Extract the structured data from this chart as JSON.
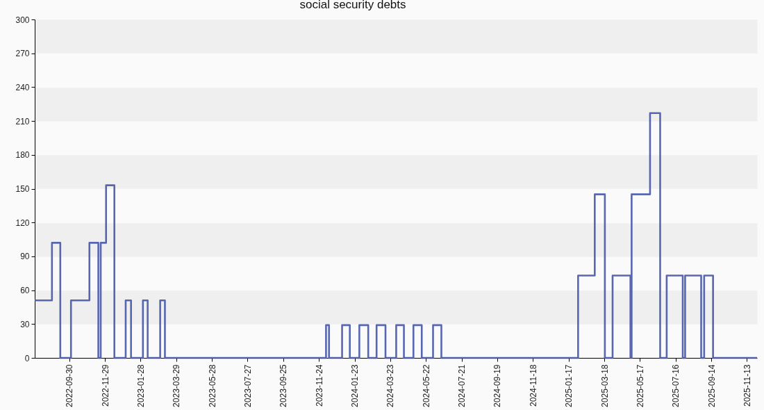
{
  "chart_data": {
    "type": "step",
    "title": "social security debts",
    "x": [
      "2022-08-03",
      "2022-09-01",
      "2022-09-15",
      "2022-10-03",
      "2022-11-03",
      "2022-11-18",
      "2022-11-22",
      "2022-12-01",
      "2022-12-15",
      "2023-01-03",
      "2023-01-12",
      "2023-02-01",
      "2023-02-09",
      "2023-03-02",
      "2023-03-10",
      "2023-12-06",
      "2023-12-11",
      "2024-01-02",
      "2024-01-15",
      "2024-01-31",
      "2024-02-15",
      "2024-02-29",
      "2024-03-15",
      "2024-04-02",
      "2024-04-15",
      "2024-05-01",
      "2024-05-15",
      "2024-06-03",
      "2024-06-17",
      "2025-02-02",
      "2025-03-02",
      "2025-03-19",
      "2025-04-01",
      "2025-05-01",
      "2025-05-03",
      "2025-06-03",
      "2025-06-20",
      "2025-07-01",
      "2025-07-28",
      "2025-08-01",
      "2025-08-28",
      "2025-09-02",
      "2025-09-17",
      "2025-11-30"
    ],
    "values": [
      51,
      102,
      0,
      51,
      102,
      0,
      102,
      153,
      0,
      51,
      0,
      51,
      0,
      51,
      0,
      29,
      0,
      29,
      0,
      29,
      0,
      29,
      0,
      29,
      0,
      29,
      0,
      29,
      0,
      73,
      145,
      0,
      73,
      0,
      145,
      217,
      0,
      73,
      0,
      73,
      0,
      73,
      0,
      0
    ],
    "color": "#4657a8",
    "xlim": [
      "2022-08-03",
      "2025-11-30"
    ],
    "xticks": [
      "2022-09-30",
      "2022-11-29",
      "2023-01-28",
      "2023-03-29",
      "2023-05-28",
      "2023-07-27",
      "2023-09-25",
      "2023-11-24",
      "2024-01-23",
      "2024-03-23",
      "2024-05-22",
      "2024-07-21",
      "2024-09-19",
      "2024-11-18",
      "2025-01-17",
      "2025-03-18",
      "2025-05-17",
      "2025-07-16",
      "2025-09-14",
      "2025-11-13"
    ],
    "ylim": [
      0,
      300
    ],
    "yticks": [
      0,
      30,
      60,
      90,
      120,
      150,
      180,
      210,
      240,
      270,
      300
    ],
    "grid": "y",
    "line_style": "solid"
  }
}
